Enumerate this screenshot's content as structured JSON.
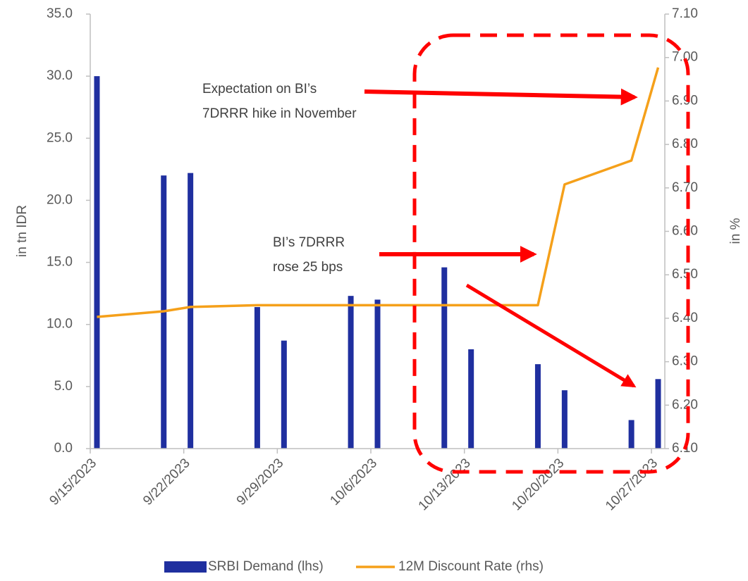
{
  "chart_data": {
    "type": "bar_line",
    "x": [
      "9/15/2023",
      "9/20/2023",
      "9/22/2023",
      "9/27/2023",
      "9/29/2023",
      "10/4/2023",
      "10/6/2023",
      "10/11/2023",
      "10/13/2023",
      "10/18/2023",
      "10/20/2023",
      "10/25/2023",
      "10/27/2023"
    ],
    "xlim": [
      "9/15/2023",
      "10/28/2023"
    ],
    "xticks": [
      "9/15/2023",
      "9/22/2023",
      "9/29/2023",
      "10/6/2023",
      "10/13/2023",
      "10/20/2023",
      "10/27/2023"
    ],
    "ylabel": "in tn IDR",
    "y2label": "in %",
    "ylim": [
      0,
      35
    ],
    "yticks": [
      {
        "value": 0,
        "label": "0.0"
      },
      {
        "value": 5,
        "label": "5.0"
      },
      {
        "value": 10,
        "label": "10.0"
      },
      {
        "value": 15,
        "label": "15.0"
      },
      {
        "value": 20,
        "label": "20.0"
      },
      {
        "value": 25,
        "label": "25.0"
      },
      {
        "value": 30,
        "label": "30.0"
      },
      {
        "value": 35,
        "label": "35.0"
      }
    ],
    "y2lim": [
      6.1,
      7.1
    ],
    "y2ticks": [
      {
        "value": 6.1,
        "label": "6.10"
      },
      {
        "value": 6.2,
        "label": "6.20"
      },
      {
        "value": 6.3,
        "label": "6.30"
      },
      {
        "value": 6.4,
        "label": "6.40"
      },
      {
        "value": 6.5,
        "label": "6.50"
      },
      {
        "value": 6.6,
        "label": "6.60"
      },
      {
        "value": 6.7,
        "label": "6.70"
      },
      {
        "value": 6.8,
        "label": "6.80"
      },
      {
        "value": 6.9,
        "label": "6.90"
      },
      {
        "value": 7.0,
        "label": "7.00"
      },
      {
        "value": 7.1,
        "label": "7.10"
      }
    ],
    "grid": false,
    "series": [
      {
        "name": "SRBI Demand (lhs)",
        "type": "bar",
        "color": "#1f2f9f",
        "values": [
          30.0,
          22.0,
          22.2,
          11.4,
          8.7,
          12.3,
          12.0,
          14.6,
          8.0,
          6.8,
          4.7,
          2.3,
          5.6
        ]
      },
      {
        "name": "12M Discount Rate (rhs)",
        "type": "line",
        "axis": "y2",
        "color": "#f5a01a",
        "values": [
          6.403,
          6.416,
          6.426,
          6.43,
          6.43,
          6.43,
          6.43,
          6.43,
          6.43,
          6.43,
          6.708,
          6.763,
          6.977
        ]
      }
    ],
    "annotations": [
      {
        "lines": [
          "Expectation on BI’s",
          "7DRRR hike in November"
        ]
      },
      {
        "lines": [
          "BI’s 7DRRR",
          "rose 25 bps"
        ]
      }
    ]
  }
}
